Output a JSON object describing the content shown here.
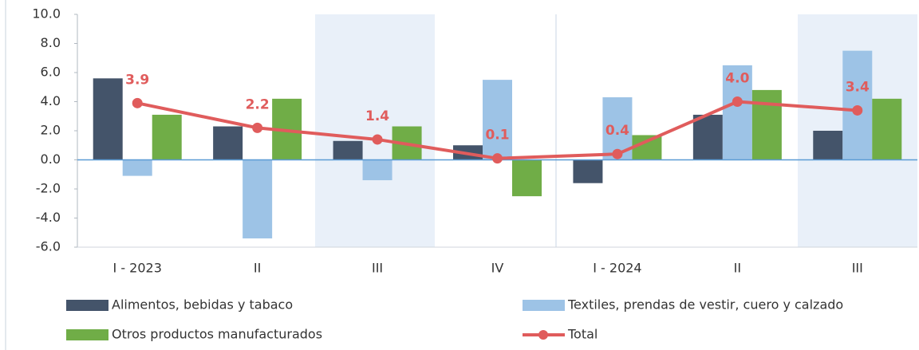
{
  "chart_data": {
    "type": "bar",
    "categories": [
      "I - 2023",
      "II",
      "III",
      "IV",
      "I - 2024",
      "II",
      "III"
    ],
    "series": [
      {
        "name": "Alimentos, bebidas y tabaco",
        "color": "#44546a",
        "values": [
          5.6,
          2.3,
          1.3,
          1.0,
          -1.6,
          3.1,
          2.0
        ]
      },
      {
        "name": "Textiles, prendas de vestir, cuero y calzado",
        "color": "#9dc3e6",
        "values": [
          -1.1,
          -5.4,
          -1.4,
          5.5,
          4.3,
          6.5,
          7.5
        ]
      },
      {
        "name": "Otros productos manufacturados",
        "color": "#70ad47",
        "values": [
          3.1,
          4.2,
          2.3,
          -2.5,
          1.7,
          4.8,
          4.2
        ]
      },
      {
        "name": "Total",
        "color": "#e05c5c",
        "type": "line",
        "values": [
          3.9,
          2.2,
          1.4,
          0.1,
          0.4,
          4.0,
          3.4
        ],
        "value_labels": [
          "3.9",
          "2.2",
          "1.4",
          "0.1",
          "0.4",
          "4.0",
          "3.4"
        ]
      }
    ],
    "ylim": [
      -6,
      10
    ],
    "yticks": [
      {
        "value": -6,
        "label": "-6.0"
      },
      {
        "value": -4,
        "label": "-4.0"
      },
      {
        "value": -2,
        "label": "-2.0"
      },
      {
        "value": 0,
        "label": "0.0"
      },
      {
        "value": 2,
        "label": "2.0"
      },
      {
        "value": 4,
        "label": "4.0"
      },
      {
        "value": 6,
        "label": "6.0"
      },
      {
        "value": 8,
        "label": "8.0"
      },
      {
        "value": 10,
        "label": "10.0"
      }
    ],
    "legend": "bottom"
  }
}
